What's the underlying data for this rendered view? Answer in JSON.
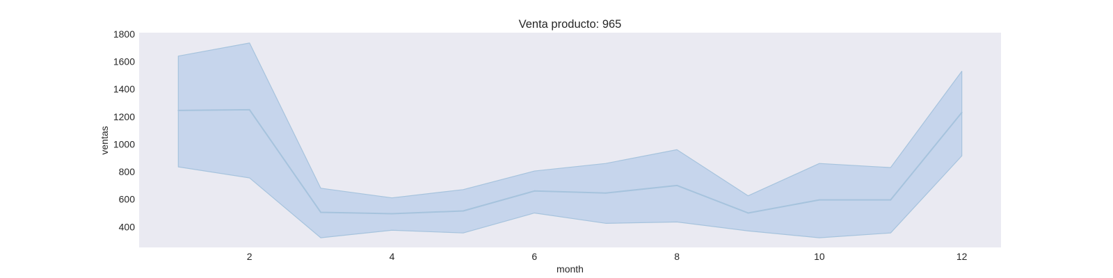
{
  "chart_data": {
    "type": "line",
    "title": "Venta producto: 965",
    "xlabel": "month",
    "ylabel": "ventas",
    "xlim": [
      0.45,
      12.55
    ],
    "ylim": [
      250,
      1810
    ],
    "x_ticks": [
      2,
      4,
      6,
      8,
      10,
      12
    ],
    "y_ticks": [
      400,
      600,
      800,
      1000,
      1200,
      1400,
      1600,
      1800
    ],
    "grid": false,
    "x": [
      1,
      2,
      3,
      4,
      5,
      6,
      7,
      8,
      9,
      10,
      11,
      12
    ],
    "series": [
      {
        "values": [
          1245,
          1250,
          505,
          495,
          515,
          660,
          645,
          700,
          500,
          595,
          595,
          1230
        ],
        "ci_lower": [
          835,
          755,
          320,
          375,
          355,
          500,
          425,
          435,
          370,
          320,
          355,
          915
        ],
        "ci_upper": [
          1640,
          1735,
          680,
          610,
          670,
          805,
          860,
          960,
          625,
          860,
          830,
          1530
        ]
      }
    ],
    "colors": {
      "plot_background": "#eaeaf2",
      "line": "#a6c3dd",
      "band_fill": "#aec7e8",
      "band_edge": "#a6c3dd"
    }
  }
}
